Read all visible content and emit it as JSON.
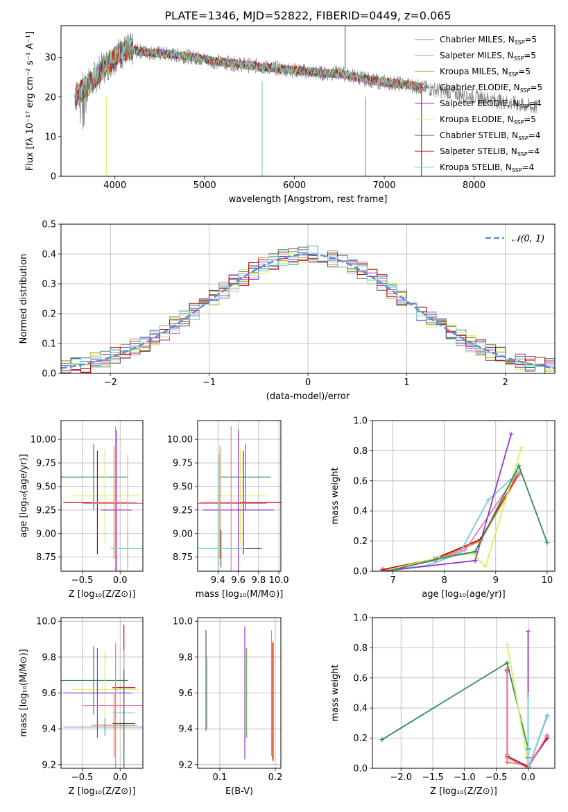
{
  "figure": {
    "title": "PLATE=1346, MJD=52822, FIBERID=0449, z=0.065"
  },
  "legend_spectrum": [
    {
      "label": "Chabrier MILES, N",
      "sub": "SSP",
      "suffix": "=5",
      "color": "#5b8fd6"
    },
    {
      "label": "Salpeter MILES, N",
      "sub": "SSP",
      "suffix": "=5",
      "color": "#e377c2"
    },
    {
      "label": "Kroupa MILES, N",
      "sub": "SSP",
      "suffix": "=5",
      "color": "#b8860b"
    },
    {
      "label": "Chabrier ELODIE, N",
      "sub": "SSP",
      "suffix": "=5",
      "color": "#2e8b57"
    },
    {
      "label": "Salpeter ELODIE, N",
      "sub": "SSP",
      "suffix": "=4",
      "color": "#9932cc"
    },
    {
      "label": "Kroupa ELODIE, N",
      "sub": "SSP",
      "suffix": "=5",
      "color": "#d4f05a"
    },
    {
      "label": "Chabrier STELIB, N",
      "sub": "SSP",
      "suffix": "=4",
      "color": "#555555"
    },
    {
      "label": "Salpeter STELIB, N",
      "sub": "SSP",
      "suffix": "=4",
      "color": "#c00000"
    },
    {
      "label": "Kroupa STELIB, N",
      "sub": "SSP",
      "suffix": "=4",
      "color": "#7fd4d4"
    }
  ],
  "chart_data": [
    {
      "id": "spectrum",
      "type": "line",
      "xlabel": "wavelength [Angstrom, rest frame]",
      "ylabel": "Flux [fλ 10⁻¹⁷ erg cm⁻² s⁻¹ A⁻¹]",
      "xlim": [
        3400,
        8900
      ],
      "ylim": [
        0,
        38
      ],
      "xticks": [
        4000,
        5000,
        6000,
        7000,
        8000
      ],
      "yticks": [
        0,
        10,
        20,
        30
      ],
      "grid": false,
      "legend_position": "top-right",
      "data_color": "#808080",
      "continuum_x": [
        3550,
        3650,
        3750,
        3850,
        3950,
        4050,
        4150,
        4300,
        4500,
        4700,
        4900,
        5100,
        5300,
        5500,
        5700,
        5900,
        6100,
        6300,
        6500,
        6700,
        6900,
        7100,
        7300,
        7400
      ],
      "continuum_y": [
        20,
        22,
        24,
        27,
        29,
        31,
        32,
        31.5,
        31,
        30.5,
        30,
        29,
        28.5,
        28,
        27.5,
        27,
        26.5,
        26,
        26,
        25,
        24,
        23.5,
        23,
        22.5
      ],
      "data_extends_to": 8700
    },
    {
      "id": "residuals",
      "type": "line",
      "xlabel": "(data-model)/error",
      "ylabel": "Normed distribution",
      "xlim": [
        -2.5,
        2.5
      ],
      "ylim": [
        0,
        0.5
      ],
      "xticks": [
        -2,
        -1,
        0,
        1,
        2
      ],
      "yticks": [
        0.0,
        0.1,
        0.2,
        0.3,
        0.4,
        0.5
      ],
      "grid": true,
      "legend_position": "top-right",
      "gaussian_label": "𝒩(0, 1)",
      "gaussian_color": "#5b8fd6",
      "hist_bin_width": 0.1
    },
    {
      "id": "age-vs-Z",
      "type": "scatter",
      "xlabel": "Z [log₁₀(Z/Z⊙)]",
      "ylabel": "age  [log₁₀(age/yr)]",
      "xlim": [
        -0.78,
        0.3
      ],
      "ylim": [
        8.6,
        10.2
      ],
      "xticks": [
        -0.5,
        0.0
      ],
      "yticks": [
        8.75,
        9.0,
        9.25,
        9.5,
        9.75,
        10.0
      ],
      "grid": true,
      "errorbars": [
        {
          "x": -0.35,
          "xerr": 0.45,
          "y": 9.6,
          "yerr": 0.35,
          "color": "#2e8b57"
        },
        {
          "x": -0.2,
          "xerr": 0.45,
          "y": 9.4,
          "yerr": 0.5,
          "color": "#d4f05a"
        },
        {
          "x": -0.3,
          "xerr": 0.45,
          "y": 9.33,
          "yerr": 0.55,
          "color": "#c00000"
        },
        {
          "x": -0.06,
          "xerr": 0.43,
          "y": 9.32,
          "yerr": 0.82,
          "color": "#e377c2"
        },
        {
          "x": -0.05,
          "xerr": 0.2,
          "y": 9.25,
          "yerr": 0.85,
          "color": "#9932cc"
        },
        {
          "x": -0.08,
          "xerr": 0.3,
          "y": 9.33,
          "yerr": 0.6,
          "color": "#ed7d31"
        },
        {
          "x": 0.1,
          "xerr": 0.22,
          "y": 8.84,
          "yerr": 0.2,
          "color": "#555555"
        },
        {
          "x": 0.1,
          "xerr": 0.22,
          "y": 8.84,
          "yerr": 1.0,
          "color": "#7fd4d4"
        }
      ]
    },
    {
      "id": "age-vs-mass",
      "type": "scatter",
      "xlabel": "mass [log₁₀(M/M⊙)]",
      "ylabel": "",
      "xlim": [
        9.2,
        10.02
      ],
      "ylim": [
        8.6,
        10.2
      ],
      "xticks": [
        9.4,
        9.6,
        9.8,
        10.0
      ],
      "yticks": [
        8.75,
        9.0,
        9.25,
        9.5,
        9.75,
        10.0
      ],
      "grid": true,
      "errorbars": [
        {
          "x": 9.67,
          "xerr": 0.25,
          "y": 9.6,
          "yerr": 0.35,
          "color": "#2e8b57"
        },
        {
          "x": 9.62,
          "xerr": 0.25,
          "y": 9.4,
          "yerr": 0.5,
          "color": "#d4f05a"
        },
        {
          "x": 9.65,
          "xerr": 0.4,
          "y": 9.33,
          "yerr": 0.55,
          "color": "#c00000"
        },
        {
          "x": 9.53,
          "xerr": 0.35,
          "y": 9.32,
          "yerr": 0.82,
          "color": "#e377c2"
        },
        {
          "x": 9.6,
          "xerr": 0.35,
          "y": 9.25,
          "yerr": 0.85,
          "color": "#9932cc"
        },
        {
          "x": 9.42,
          "xerr": 0.2,
          "y": 9.33,
          "yerr": 0.6,
          "color": "#ed7d31"
        },
        {
          "x": 9.43,
          "xerr": 0.4,
          "y": 8.84,
          "yerr": 0.2,
          "color": "#555555"
        },
        {
          "x": 9.41,
          "xerr": 0.25,
          "y": 8.84,
          "yerr": 1.0,
          "color": "#7fd4d4"
        }
      ]
    },
    {
      "id": "massweight-vs-age",
      "type": "line",
      "xlabel": "age  [log₁₀(age/yr)]",
      "ylabel": "mass weight",
      "xlim": [
        6.6,
        10.15
      ],
      "ylim": [
        0,
        1.0
      ],
      "xticks": [
        7,
        8,
        9,
        10
      ],
      "yticks": [
        0.0,
        0.2,
        0.4,
        0.6,
        0.8,
        1.0
      ],
      "grid": true,
      "series": [
        {
          "color": "#c00000",
          "x": [
            6.8,
            7.8,
            8.7,
            9.45
          ],
          "y": [
            0.01,
            0.08,
            0.21,
            0.65
          ]
        },
        {
          "color": "#ed7d31",
          "x": [
            6.8,
            7.8,
            8.7,
            9.45
          ],
          "y": [
            0.0,
            0.07,
            0.2,
            0.64
          ]
        },
        {
          "color": "#e377c2",
          "x": [
            6.8,
            7.8,
            8.4,
            9.45
          ],
          "y": [
            0.0,
            0.07,
            0.14,
            0.66
          ]
        },
        {
          "color": "#5b8fd6",
          "x": [
            6.8,
            7.7,
            8.3,
            8.85,
            9.45
          ],
          "y": [
            0.0,
            0.04,
            0.12,
            0.47,
            0.66
          ]
        },
        {
          "color": "#7fd4d4",
          "x": [
            6.8,
            7.7,
            8.3,
            8.85,
            9.45
          ],
          "y": [
            0.0,
            0.04,
            0.12,
            0.47,
            0.66
          ]
        },
        {
          "color": "#d4f05a",
          "x": [
            6.8,
            7.9,
            8.55,
            8.8,
            9.5
          ],
          "y": [
            0.0,
            0.09,
            0.12,
            0.03,
            0.82
          ]
        },
        {
          "color": "#9932cc",
          "x": [
            6.8,
            8.6,
            9.3
          ],
          "y": [
            0.0,
            0.07,
            0.91
          ]
        },
        {
          "color": "#2e8b57",
          "x": [
            6.9,
            7.85,
            8.6,
            9.45,
            10.0
          ],
          "y": [
            0.0,
            0.08,
            0.13,
            0.7,
            0.19
          ]
        }
      ]
    },
    {
      "id": "mass-vs-Z",
      "type": "scatter",
      "xlabel": "Z [log₁₀(Z/Z⊙)]",
      "ylabel": "mass [log₁₀(M/M⊙)]",
      "xlim": [
        -0.78,
        0.3
      ],
      "ylim": [
        9.18,
        10.02
      ],
      "xticks": [
        -0.5,
        0.0
      ],
      "yticks": [
        9.2,
        9.4,
        9.6,
        9.8,
        10.0
      ],
      "grid": true,
      "errorbars": [
        {
          "x": -0.35,
          "xerr": 0.45,
          "y": 9.67,
          "yerr": 0.19,
          "color": "#2e8b57"
        },
        {
          "x": -0.2,
          "xerr": 0.45,
          "y": 9.62,
          "yerr": 0.22,
          "color": "#d4f05a"
        },
        {
          "x": -0.3,
          "xerr": 0.45,
          "y": 9.6,
          "yerr": 0.25,
          "color": "#9932cc"
        },
        {
          "x": 0.05,
          "xerr": 0.15,
          "y": 9.63,
          "yerr": 0.35,
          "color": "#c00000"
        },
        {
          "x": -0.06,
          "xerr": 0.43,
          "y": 9.53,
          "yerr": 0.35,
          "color": "#e377c2"
        },
        {
          "x": 0.05,
          "xerr": 0.15,
          "y": 9.49,
          "yerr": 0.35,
          "color": "#7fd4d4"
        },
        {
          "x": -0.08,
          "xerr": 0.3,
          "y": 9.42,
          "yerr": 0.18,
          "color": "#ed7d31"
        },
        {
          "x": 0.05,
          "xerr": 0.15,
          "y": 9.43,
          "yerr": 0.3,
          "color": "#555555"
        },
        {
          "x": -0.2,
          "xerr": 0.55,
          "y": 9.41,
          "yerr": 0.05,
          "color": "#5b8fd6"
        }
      ]
    },
    {
      "id": "mass-vs-EBV",
      "type": "scatter",
      "xlabel": "E(B-V)",
      "ylabel": "",
      "xlim": [
        0.06,
        0.21
      ],
      "ylim": [
        9.18,
        10.02
      ],
      "xticks": [
        0.1,
        0.2
      ],
      "yticks": [
        9.2,
        9.4,
        9.6,
        9.8,
        10.0
      ],
      "grid": true,
      "errorbars": [
        {
          "x": 0.075,
          "y": 9.67,
          "yerr": 0.28,
          "color": "#555555"
        },
        {
          "x": 0.077,
          "y": 9.6,
          "yerr": 0.2,
          "color": "#7fd4d4"
        },
        {
          "x": 0.145,
          "y": 9.6,
          "yerr": 0.37,
          "color": "#9932cc"
        },
        {
          "x": 0.148,
          "y": 9.6,
          "yerr": 0.25,
          "color": "#2e8b57"
        },
        {
          "x": 0.149,
          "y": 9.6,
          "yerr": 0.25,
          "color": "#d4f05a"
        },
        {
          "x": 0.193,
          "y": 9.6,
          "yerr": 0.35,
          "color": "#e377c2"
        },
        {
          "x": 0.195,
          "y": 9.56,
          "yerr": 0.33,
          "color": "#ed7d31"
        },
        {
          "x": 0.196,
          "y": 9.55,
          "yerr": 0.33,
          "color": "#c00000"
        }
      ]
    },
    {
      "id": "massweight-vs-Z",
      "type": "line",
      "xlabel": "Z [log₁₀(Z/Z⊙)]",
      "ylabel": "mass weight",
      "xlim": [
        -2.45,
        0.42
      ],
      "ylim": [
        0,
        1.0
      ],
      "xticks": [
        -2.0,
        -1.5,
        -1.0,
        -0.5,
        0.0
      ],
      "yticks": [
        0.0,
        0.2,
        0.4,
        0.6,
        0.8,
        1.0
      ],
      "grid": true,
      "series": [
        {
          "color": "#2e8b57",
          "x": [
            -2.3,
            -0.33,
            0.0,
            0.0
          ],
          "y": [
            0.19,
            0.7,
            0.13,
            0.0
          ]
        },
        {
          "color": "#d4f05a",
          "x": [
            -0.33,
            0.0,
            0.0
          ],
          "y": [
            0.82,
            0.03,
            0.1
          ]
        },
        {
          "color": "#9932cc",
          "x": [
            0.0,
            0.0,
            0.0
          ],
          "y": [
            0.91,
            0.07,
            0.0
          ]
        },
        {
          "color": "#ed7d31",
          "x": [
            -0.33,
            -0.33,
            -0.33,
            0.0,
            0.3
          ],
          "y": [
            0.64,
            0.09,
            0.04,
            0.02,
            0.21
          ]
        },
        {
          "color": "#c00000",
          "x": [
            -0.33,
            -0.33,
            0.0,
            0.3
          ],
          "y": [
            0.65,
            0.08,
            0.01,
            0.2
          ]
        },
        {
          "color": "#e377c2",
          "x": [
            -0.33,
            -0.33,
            0.0,
            0.3
          ],
          "y": [
            0.66,
            0.07,
            0.0,
            0.22
          ]
        },
        {
          "color": "#5b8fd6",
          "x": [
            0.0,
            0.0,
            0.0,
            0.3
          ],
          "y": [
            0.48,
            0.12,
            0.0,
            0.35
          ]
        },
        {
          "color": "#7fd4d4",
          "x": [
            0.0,
            0.0,
            0.0,
            0.3
          ],
          "y": [
            0.48,
            0.12,
            0.0,
            0.34
          ]
        }
      ]
    }
  ]
}
